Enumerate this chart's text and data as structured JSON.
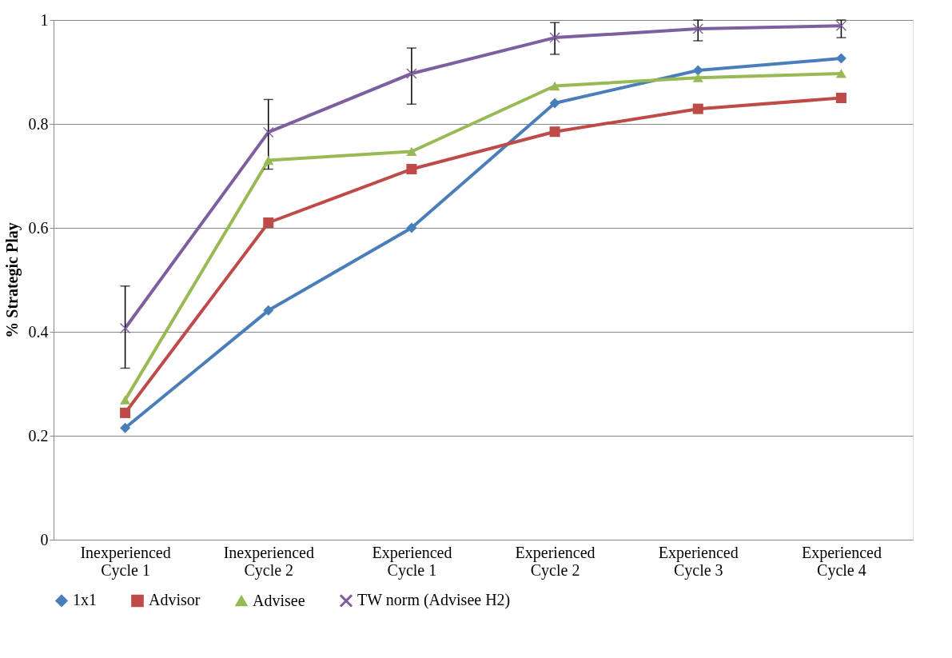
{
  "chart_data": {
    "type": "line",
    "ylabel": "% Strategic Play",
    "categories": [
      "Inexperienced Cycle 1",
      "Inexperienced Cycle 2",
      "Experienced Cycle 1",
      "Experienced Cycle 2",
      "Experienced Cycle 3",
      "Experienced Cycle 4"
    ],
    "series": [
      {
        "name": "1x1",
        "color": "#4a7ebb",
        "marker": "diamond",
        "values": [
          0.215,
          0.441,
          0.6,
          0.84,
          0.903,
          0.926
        ]
      },
      {
        "name": "Advisor",
        "color": "#be4b48",
        "marker": "square",
        "values": [
          0.244,
          0.61,
          0.713,
          0.785,
          0.829,
          0.85
        ]
      },
      {
        "name": "Advisee",
        "color": "#98b954",
        "marker": "triangle",
        "values": [
          0.269,
          0.73,
          0.747,
          0.873,
          0.889,
          0.897
        ]
      },
      {
        "name": "TW norm (Advisee H2)",
        "color": "#7d5fa0",
        "marker": "cross",
        "values": [
          0.407,
          0.784,
          0.897,
          0.966,
          0.983,
          0.989
        ],
        "errors": [
          [
            0.33,
            0.488
          ],
          [
            0.713,
            0.847
          ],
          [
            0.838,
            0.946
          ],
          [
            0.934,
            0.995
          ],
          [
            0.96,
            1.0
          ],
          [
            0.966,
            1.0
          ]
        ]
      }
    ],
    "ylim": [
      0,
      1
    ],
    "yticks": [
      0,
      0.2,
      0.4,
      0.6,
      0.8,
      1
    ],
    "grid": "y",
    "legend": "bottom"
  }
}
